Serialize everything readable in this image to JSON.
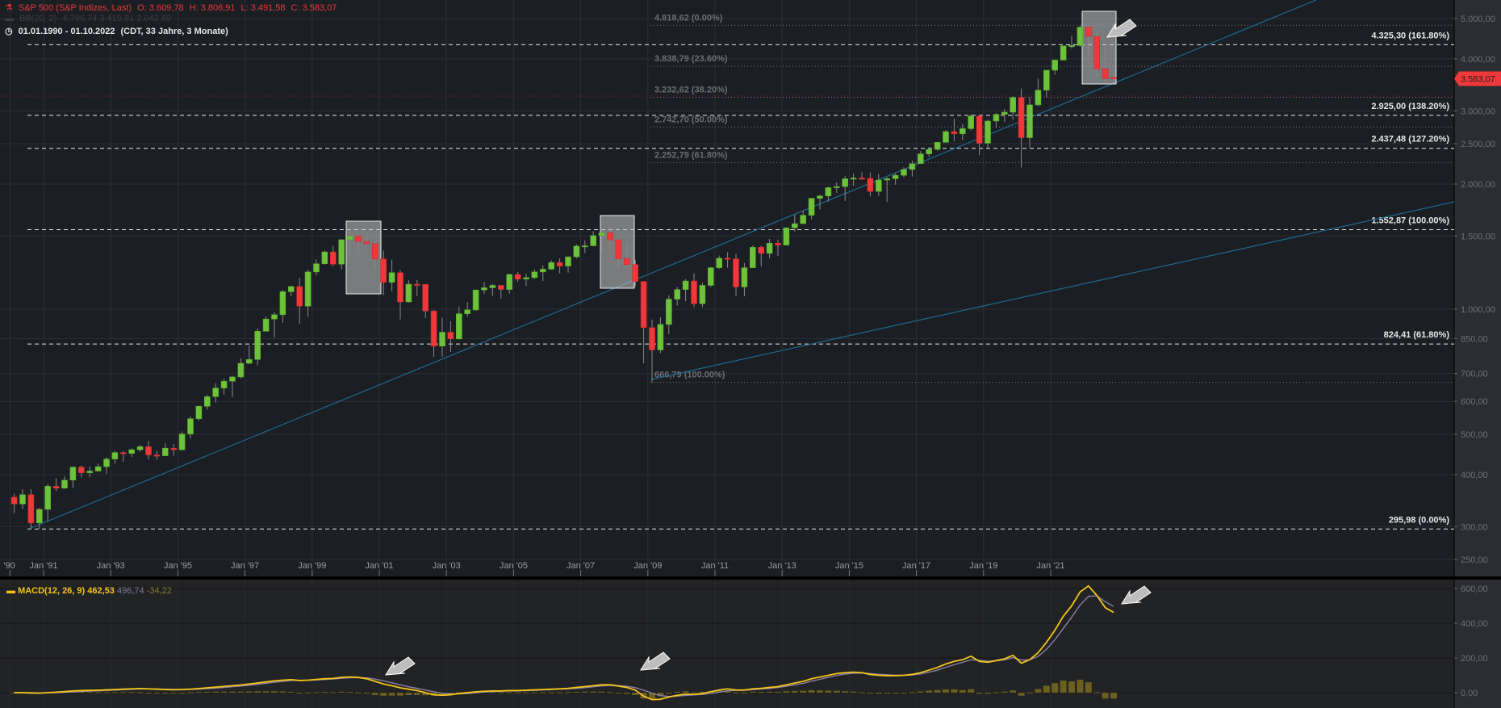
{
  "header": {
    "title": "S&P 500 (S&P Indizes, Last)",
    "open": "O: 3.609,78",
    "high": "H: 3.806,91",
    "low": "L: 3.491,58",
    "close": "C: 3.583,07",
    "bb_label": "BB(20, 2)",
    "bb_values": "4.796,74  3.419,81  2.042,89",
    "range": "01.01.1990 - 01.10.2022",
    "range_info": "(CDT, 33 Jahre, 3 Monate)"
  },
  "macd_header": {
    "label": "MACD(12, 26, 9)",
    "macd": "462,53",
    "signal": "496,74",
    "histogram": "-34,22"
  },
  "colors": {
    "up": "#6cc33a",
    "down": "#f0383a",
    "macd": "#f5c518",
    "signal": "#8a80a8",
    "hist": "#6b5e1e",
    "trend": "#1f6a8e",
    "price_tag": "#f0383a"
  },
  "chart_data": [
    {
      "type": "candlestick",
      "scale": "log",
      "ylim": [
        230,
        5300
      ],
      "period": "quarterly",
      "start": "1990-Q1",
      "x_ticks": [
        "'90",
        "Jan '91",
        "Jan '93",
        "Jan '95",
        "Jan '97",
        "Jan '99",
        "Jan '01",
        "Jan '03",
        "Jan '05",
        "Jan '07",
        "Jan '09",
        "Jan '11",
        "Jan '13",
        "Jan '15",
        "Jan '17",
        "Jan '19",
        "Jan '21"
      ],
      "y_ticks": [
        "5.000,00",
        "4.000,00",
        "3.000,00",
        "2.500,00",
        "2.000,00",
        "1.500,00",
        "1.000,00",
        "850,00",
        "700,00",
        "600,00",
        "500,00",
        "400,00",
        "300,00",
        "250,00"
      ],
      "y_tick_values": [
        5000,
        4000,
        3000,
        2500,
        2000,
        1500,
        1000,
        850,
        700,
        600,
        500,
        400,
        300,
        250
      ],
      "last_price_label": "3.583,07",
      "last_price": 3583.07,
      "open": [
        353,
        340,
        358,
        306,
        330,
        375,
        371,
        388,
        417,
        404,
        408,
        418,
        436,
        452,
        450,
        459,
        467,
        446,
        444,
        463,
        459,
        501,
        545,
        584,
        616,
        646,
        671,
        687,
        741,
        757,
        885,
        947,
        970,
        1102,
        1134,
        1017,
        1229,
        1286,
        1373,
        1283,
        1469,
        1499,
        1455,
        1437,
        1320,
        1160,
        1224,
        1041,
        1148,
        1147,
        990,
        815,
        880,
        848,
        975,
        996,
        1112,
        1126,
        1141,
        1115,
        1212,
        1181,
        1191,
        1229,
        1248,
        1295,
        1270,
        1336,
        1418,
        1421,
        1503,
        1527,
        1468,
        1323,
        1280,
        1166,
        903,
        798,
        919,
        1057,
        1115,
        1169,
        1031,
        1141,
        1258,
        1326,
        1321,
        1131,
        1258,
        1409,
        1362,
        1441,
        1426,
        1569,
        1606,
        1682,
        1848,
        1872,
        1960,
        1972,
        2059,
        2068,
        2063,
        1920,
        2044,
        2060,
        2099,
        2168,
        2239,
        2363,
        2423,
        2519,
        2674,
        2641,
        2718,
        2914,
        2507,
        2834,
        2942,
        2977,
        3231,
        2585,
        3100,
        3363,
        3756,
        3973,
        4298,
        4308,
        4766,
        4530,
        3785,
        3609.78
      ],
      "high": [
        360,
        369,
        369,
        333,
        380,
        392,
        396,
        418,
        421,
        419,
        425,
        441,
        456,
        456,
        463,
        471,
        482,
        456,
        476,
        474,
        508,
        552,
        586,
        622,
        664,
        681,
        691,
        762,
        817,
        899,
        961,
        983,
        1112,
        1138,
        1190,
        1245,
        1317,
        1383,
        1420,
        1474,
        1553,
        1527,
        1531,
        1455,
        1384,
        1316,
        1240,
        1173,
        1176,
        1146,
        994,
        955,
        935,
        1015,
        1040,
        1112,
        1163,
        1150,
        1141,
        1217,
        1229,
        1217,
        1246,
        1275,
        1310,
        1326,
        1340,
        1431,
        1462,
        1540,
        1556,
        1576,
        1472,
        1440,
        1314,
        1167,
        944,
        956,
        1080,
        1130,
        1181,
        1220,
        1157,
        1263,
        1345,
        1371,
        1357,
        1292,
        1422,
        1422,
        1475,
        1470,
        1574,
        1687,
        1730,
        1849,
        1884,
        1968,
        2019,
        2093,
        2119,
        2135,
        2133,
        2116,
        2076,
        2121,
        2194,
        2278,
        2401,
        2454,
        2519,
        2694,
        2873,
        2791,
        2941,
        2940,
        2860,
        2964,
        3028,
        3248,
        3394,
        3233,
        3588,
        3760,
        3984,
        4302,
        4546,
        4808,
        4819,
        4637,
        4325,
        3806.91
      ],
      "low": [
        323,
        330,
        296,
        295.98,
        309,
        365,
        370,
        372,
        394,
        394,
        407,
        402,
        425,
        429,
        441,
        454,
        435,
        435,
        443,
        444,
        457,
        488,
        539,
        573,
        596,
        624,
        615,
        681,
        737,
        733,
        886,
        855,
        927,
        1074,
        923,
        959,
        1205,
        1279,
        1268,
        1247,
        1339,
        1356,
        1419,
        1254,
        1081,
        1104,
        945,
        1038,
        1074,
        953,
        768,
        769,
        789,
        846,
        960,
        991,
        1087,
        1076,
        1060,
        1090,
        1163,
        1137,
        1183,
        1168,
        1245,
        1219,
        1224,
        1327,
        1364,
        1416,
        1371,
        1407,
        1257,
        1272,
        1133,
        741,
        666.79,
        784,
        870,
        1020,
        1045,
        1011,
        1011,
        1131,
        1249,
        1259,
        1075,
        1074,
        1259,
        1267,
        1325,
        1343,
        1426,
        1536,
        1604,
        1646,
        1738,
        1814,
        1904,
        1821,
        1981,
        2048,
        1867,
        1872,
        1810,
        1992,
        2075,
        2084,
        2245,
        2322,
        2406,
        2520,
        2533,
        2553,
        2691,
        2347,
        2444,
        2729,
        2822,
        2856,
        2192,
        2447,
        3075,
        3234,
        3662,
        3969,
        4234,
        4279,
        4115,
        3637,
        3491,
        3491.58
      ],
      "close": [
        340,
        358,
        306,
        330,
        375,
        371,
        388,
        417,
        404,
        408,
        418,
        436,
        452,
        450,
        459,
        467,
        446,
        444,
        463,
        459,
        501,
        545,
        584,
        616,
        646,
        671,
        687,
        741,
        757,
        885,
        947,
        970,
        1102,
        1134,
        1017,
        1229,
        1286,
        1373,
        1283,
        1469,
        1499,
        1455,
        1437,
        1320,
        1160,
        1224,
        1041,
        1148,
        1147,
        990,
        815,
        880,
        848,
        975,
        996,
        1112,
        1126,
        1141,
        1115,
        1212,
        1181,
        1191,
        1229,
        1248,
        1295,
        1270,
        1336,
        1418,
        1421,
        1503,
        1527,
        1468,
        1323,
        1280,
        1166,
        903,
        798,
        919,
        1057,
        1115,
        1169,
        1031,
        1141,
        1258,
        1326,
        1321,
        1131,
        1258,
        1409,
        1362,
        1441,
        1426,
        1569,
        1606,
        1682,
        1848,
        1872,
        1960,
        1972,
        2059,
        2068,
        2063,
        1920,
        2044,
        2060,
        2099,
        2168,
        2239,
        2363,
        2423,
        2519,
        2674,
        2641,
        2718,
        2914,
        2507,
        2834,
        2942,
        2977,
        3231,
        2585,
        3100,
        3363,
        3756,
        3973,
        4298,
        4308,
        4766,
        4530,
        3785,
        3586,
        3583.07
      ],
      "fib_dashed": [
        {
          "value": 4325.3,
          "label": "4.325,30 (161.80%)"
        },
        {
          "value": 2925.0,
          "label": "2.925,00 (138.20%)"
        },
        {
          "value": 2437.48,
          "label": "2.437,48 (127.20%)"
        },
        {
          "value": 1552.87,
          "label": "1.552,87 (100.00%)"
        },
        {
          "value": 824.41,
          "label": "824,41 (61.80%)"
        },
        {
          "value": 295.98,
          "label": "295,98 (0.00%)"
        }
      ],
      "fib_dotted": [
        {
          "value": 4818.62,
          "label": "4.818,62 (0.00%)"
        },
        {
          "value": 3838.79,
          "label": "3.838,79 (23.60%)"
        },
        {
          "value": 3232.62,
          "label": "3.232,62 (38.20%)"
        },
        {
          "value": 2742.7,
          "label": "2.742,70 (50.00%)"
        },
        {
          "value": 2252.79,
          "label": "2.252,79 (61.80%)"
        },
        {
          "value": 666.79,
          "label": "666,79 (100.00%)"
        }
      ]
    },
    {
      "type": "line",
      "name": "MACD(12, 26, 9)",
      "ylim": [
        -70,
        650
      ],
      "y_ticks": [
        "600,00",
        "400,00",
        "200,00",
        "0,00"
      ],
      "y_tick_values": [
        600,
        400,
        200,
        0
      ],
      "macd": [
        0,
        0,
        -2,
        -3,
        0,
        3,
        6,
        10,
        12,
        13,
        14,
        16,
        18,
        20,
        22,
        24,
        22,
        20,
        18,
        17,
        18,
        20,
        24,
        28,
        32,
        36,
        40,
        44,
        50,
        56,
        62,
        68,
        72,
        75,
        70,
        72,
        76,
        80,
        82,
        88,
        90,
        88,
        80,
        65,
        50,
        40,
        28,
        20,
        12,
        0,
        -12,
        -15,
        -12,
        -5,
        0,
        5,
        8,
        10,
        10,
        12,
        12,
        14,
        16,
        18,
        20,
        22,
        25,
        30,
        35,
        40,
        45,
        45,
        38,
        30,
        15,
        -20,
        -40,
        -38,
        -25,
        -15,
        -8,
        -10,
        -5,
        5,
        15,
        22,
        15,
        15,
        22,
        25,
        30,
        35,
        45,
        55,
        65,
        80,
        90,
        100,
        110,
        115,
        118,
        115,
        105,
        100,
        98,
        98,
        100,
        105,
        115,
        130,
        145,
        165,
        180,
        190,
        210,
        180,
        175,
        185,
        195,
        215,
        170,
        190,
        230,
        290,
        360,
        440,
        500,
        580,
        615,
        560,
        490,
        462.53
      ],
      "signal": [
        0,
        0,
        0,
        -1,
        -1,
        0,
        2,
        4,
        7,
        9,
        11,
        13,
        15,
        17,
        19,
        21,
        22,
        21,
        20,
        19,
        18,
        19,
        20,
        23,
        26,
        30,
        34,
        38,
        43,
        48,
        54,
        60,
        65,
        70,
        71,
        71,
        73,
        76,
        79,
        83,
        86,
        87,
        85,
        78,
        68,
        57,
        45,
        34,
        25,
        15,
        5,
        -3,
        -7,
        -7,
        -5,
        -1,
        3,
        6,
        8,
        10,
        11,
        12,
        14,
        16,
        18,
        20,
        22,
        25,
        29,
        34,
        39,
        42,
        41,
        37,
        29,
        14,
        -3,
        -17,
        -22,
        -20,
        -16,
        -13,
        -10,
        -5,
        3,
        11,
        13,
        14,
        17,
        21,
        25,
        30,
        37,
        45,
        54,
        66,
        77,
        88,
        99,
        107,
        112,
        113,
        110,
        106,
        103,
        101,
        100,
        102,
        108,
        118,
        130,
        146,
        161,
        175,
        190,
        186,
        181,
        183,
        189,
        202,
        188,
        189,
        209,
        250,
        305,
        370,
        435,
        505,
        555,
        558,
        524,
        496.74
      ]
    }
  ]
}
